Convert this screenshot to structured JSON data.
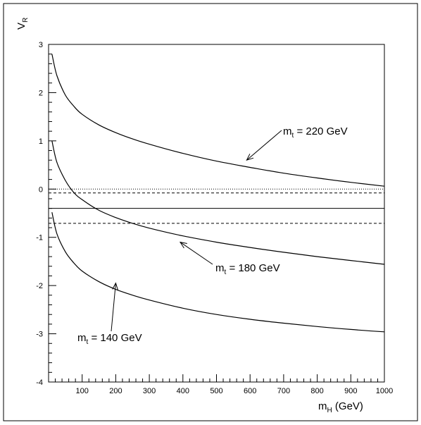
{
  "chart_data": {
    "type": "line",
    "title": "",
    "xlabel": "m_H (GeV)",
    "ylabel": "V_R",
    "xlim": [
      0,
      1000
    ],
    "ylim": [
      -4,
      3
    ],
    "xticks": [
      100,
      200,
      300,
      400,
      500,
      600,
      700,
      800,
      900,
      1000
    ],
    "yticks": [
      -4,
      -3,
      -2,
      -1,
      0,
      1,
      2,
      3
    ],
    "grid": false,
    "legend": "none",
    "series": [
      {
        "style": "solid",
        "x": [
          10,
          25,
          50,
          75,
          100,
          150,
          200,
          250,
          300,
          400,
          500,
          600,
          700,
          800,
          900,
          1000
        ],
        "y": [
          2.8,
          2.35,
          1.95,
          1.72,
          1.55,
          1.33,
          1.17,
          1.04,
          0.93,
          0.74,
          0.58,
          0.45,
          0.33,
          0.23,
          0.14,
          0.06
        ]
      },
      {
        "style": "solid",
        "x": [
          10,
          25,
          50,
          75,
          100,
          150,
          200,
          250,
          300,
          400,
          500,
          600,
          700,
          800,
          900,
          1000
        ],
        "y": [
          1.0,
          0.55,
          0.18,
          -0.07,
          -0.22,
          -0.44,
          -0.59,
          -0.71,
          -0.81,
          -0.97,
          -1.1,
          -1.21,
          -1.31,
          -1.4,
          -1.48,
          -1.56
        ]
      },
      {
        "style": "solid",
        "x": [
          10,
          25,
          50,
          75,
          100,
          150,
          200,
          250,
          300,
          400,
          500,
          600,
          700,
          800,
          900,
          1000
        ],
        "y": [
          -0.48,
          -0.93,
          -1.3,
          -1.53,
          -1.7,
          -1.92,
          -2.08,
          -2.2,
          -2.3,
          -2.47,
          -2.6,
          -2.7,
          -2.78,
          -2.85,
          -2.91,
          -2.96
        ]
      }
    ],
    "reference_lines": [
      {
        "y": 0.0,
        "style": "dotted"
      },
      {
        "y": -0.08,
        "style": "dashed"
      },
      {
        "y": -0.4,
        "style": "solid"
      },
      {
        "y": -0.71,
        "style": "dashed"
      }
    ],
    "annotations": [
      {
        "main": "m",
        "sub": "t",
        "rest": " = 220 GeV",
        "arrow_to": [
          590,
          0.6
        ]
      },
      {
        "main": "m",
        "sub": "t",
        "rest": " = 180 GeV",
        "arrow_to": [
          392,
          -1.1
        ]
      },
      {
        "main": "m",
        "sub": "t",
        "rest": " = 140 GeV",
        "arrow_to": [
          200,
          -1.95
        ]
      }
    ]
  }
}
